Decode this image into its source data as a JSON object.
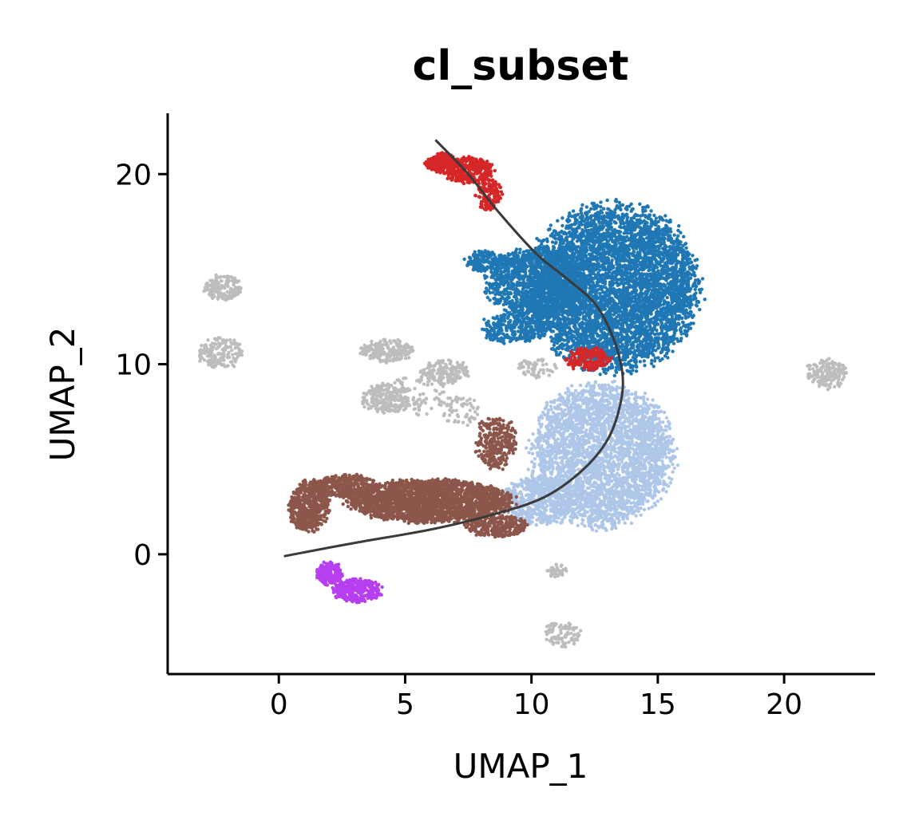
{
  "chart_data": {
    "type": "scatter",
    "title": "cl_subset",
    "xlabel": "UMAP_1",
    "ylabel": "UMAP_2",
    "xlim": [
      -4.4,
      23.6
    ],
    "ylim": [
      -6.3,
      23.2
    ],
    "xticks": [
      0,
      5,
      10,
      15,
      20
    ],
    "yticks": [
      0,
      10,
      20
    ],
    "grid": false,
    "legend": "none",
    "series": [
      {
        "color": "#bdbdbd",
        "clusters": [
          {
            "cx": -2.2,
            "cy": 14.0,
            "rx": 0.8,
            "ry": 0.7,
            "n": 140
          },
          {
            "cx": -2.3,
            "cy": 10.6,
            "rx": 0.9,
            "ry": 0.8,
            "n": 160
          },
          {
            "cx": 21.7,
            "cy": 9.5,
            "rx": 0.8,
            "ry": 0.8,
            "n": 160
          },
          {
            "cx": 11.2,
            "cy": -4.2,
            "rx": 0.7,
            "ry": 0.7,
            "n": 90
          },
          {
            "cx": 11.0,
            "cy": -0.9,
            "rx": 0.4,
            "ry": 0.4,
            "n": 40
          },
          {
            "cx": 4.3,
            "cy": 8.2,
            "rx": 1.0,
            "ry": 0.8,
            "n": 220
          },
          {
            "cx": 4.3,
            "cy": 10.7,
            "rx": 1.1,
            "ry": 0.6,
            "n": 200
          },
          {
            "cx": 6.6,
            "cy": 9.6,
            "rx": 1.0,
            "ry": 0.6,
            "n": 160
          },
          {
            "cx": 5.5,
            "cy": 8.5,
            "rx": 1.2,
            "ry": 1.2,
            "n": 80
          },
          {
            "cx": 7.2,
            "cy": 7.6,
            "rx": 0.8,
            "ry": 0.8,
            "n": 60
          },
          {
            "cx": 10.2,
            "cy": 9.8,
            "rx": 0.8,
            "ry": 0.5,
            "n": 60
          }
        ]
      },
      {
        "color": "#1f77b4",
        "clusters": [
          {
            "cx": 13.2,
            "cy": 14.0,
            "rx": 3.4,
            "ry": 4.3,
            "n": 5200
          },
          {
            "cx": 10.2,
            "cy": 14.3,
            "rx": 2.0,
            "ry": 1.8,
            "n": 1200
          },
          {
            "cx": 8.2,
            "cy": 15.4,
            "rx": 0.8,
            "ry": 0.6,
            "n": 180
          },
          {
            "cx": 9.3,
            "cy": 11.9,
            "rx": 1.3,
            "ry": 0.8,
            "n": 300
          }
        ]
      },
      {
        "color": "#aec7e8",
        "clusters": [
          {
            "cx": 12.8,
            "cy": 5.2,
            "rx": 2.8,
            "ry": 3.7,
            "n": 3200
          },
          {
            "cx": 10.3,
            "cy": 2.8,
            "rx": 1.4,
            "ry": 1.3,
            "n": 600
          }
        ]
      },
      {
        "color": "#d62728",
        "clusters": [
          {
            "cx": 6.4,
            "cy": 20.6,
            "rx": 0.6,
            "ry": 0.5,
            "n": 200
          },
          {
            "cx": 7.5,
            "cy": 20.2,
            "rx": 1.0,
            "ry": 0.7,
            "n": 320
          },
          {
            "cx": 8.3,
            "cy": 19.0,
            "rx": 0.5,
            "ry": 0.9,
            "n": 140
          },
          {
            "cx": 12.2,
            "cy": 10.3,
            "rx": 0.9,
            "ry": 0.6,
            "n": 180
          }
        ]
      },
      {
        "color": "#8c564b",
        "clusters": [
          {
            "cx": 6.0,
            "cy": 2.8,
            "rx": 3.2,
            "ry": 1.1,
            "n": 2400
          },
          {
            "cx": 1.2,
            "cy": 2.5,
            "rx": 0.8,
            "ry": 1.3,
            "n": 500
          },
          {
            "cx": 2.6,
            "cy": 3.6,
            "rx": 1.3,
            "ry": 0.6,
            "n": 400
          },
          {
            "cx": 8.6,
            "cy": 5.9,
            "rx": 0.8,
            "ry": 1.4,
            "n": 300
          },
          {
            "cx": 8.6,
            "cy": 1.5,
            "rx": 1.2,
            "ry": 0.6,
            "n": 300
          }
        ]
      },
      {
        "color": "#b73ff0",
        "clusters": [
          {
            "cx": 2.0,
            "cy": -1.0,
            "rx": 0.5,
            "ry": 0.6,
            "n": 180
          },
          {
            "cx": 3.1,
            "cy": -1.9,
            "rx": 1.0,
            "ry": 0.6,
            "n": 300
          }
        ]
      }
    ],
    "trajectory": {
      "color": "#3a3a3a",
      "points": [
        [
          0.2,
          -0.1
        ],
        [
          3.0,
          0.6
        ],
        [
          6.0,
          1.3
        ],
        [
          8.5,
          2.1
        ],
        [
          10.5,
          3.0
        ],
        [
          12.0,
          4.4
        ],
        [
          13.0,
          6.0
        ],
        [
          13.5,
          7.8
        ],
        [
          13.6,
          9.5
        ],
        [
          13.2,
          11.5
        ],
        [
          12.5,
          13.2
        ],
        [
          11.4,
          14.5
        ],
        [
          10.2,
          15.8
        ],
        [
          8.7,
          18.0
        ],
        [
          7.5,
          20.0
        ],
        [
          6.2,
          21.8
        ]
      ]
    }
  }
}
